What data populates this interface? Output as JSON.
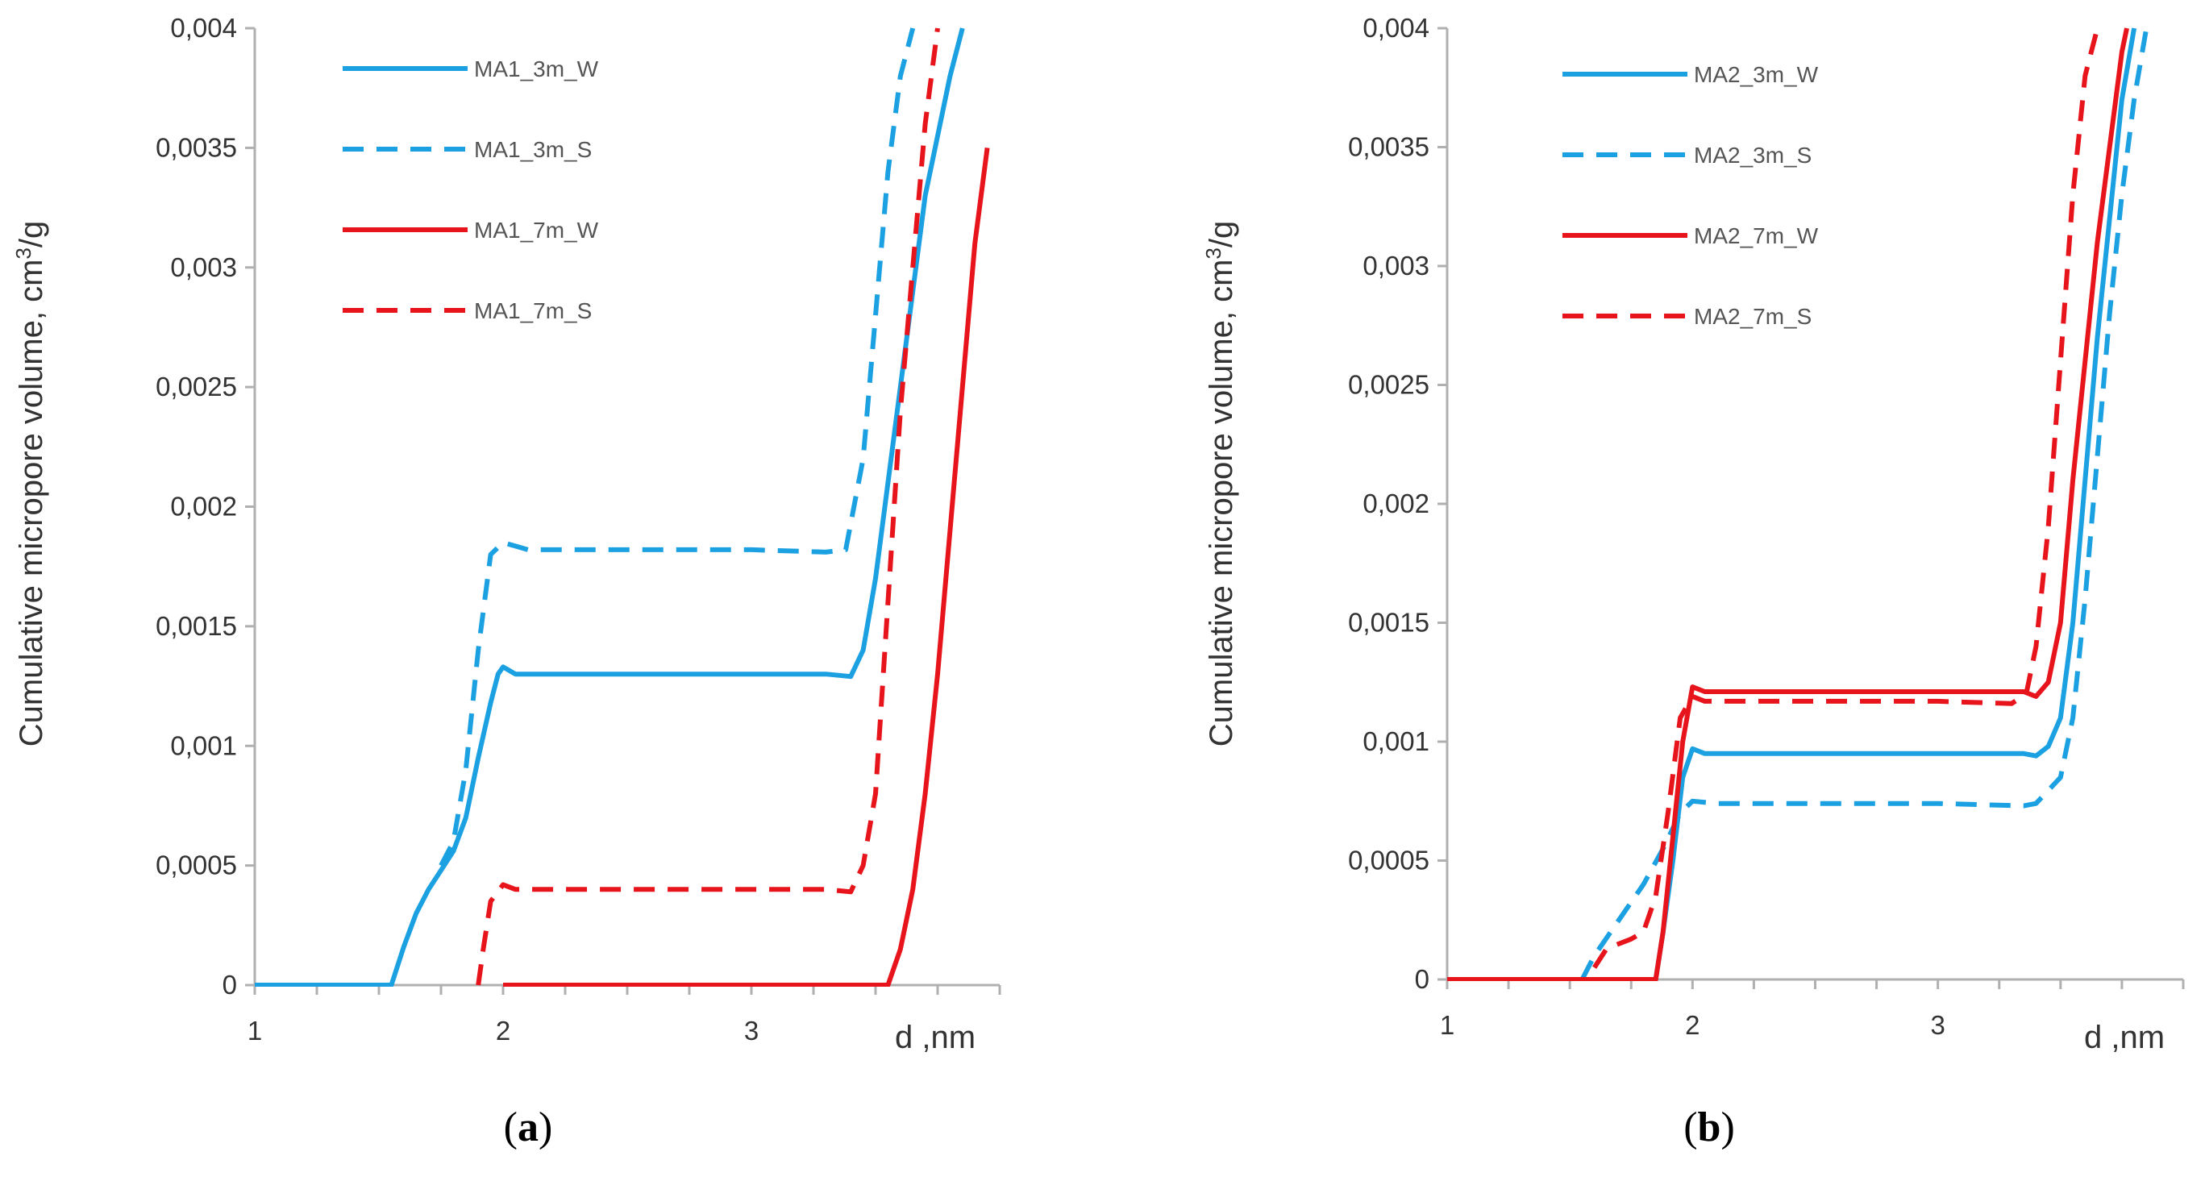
{
  "chart_data": [
    {
      "type": "line",
      "panel_label_open": "(",
      "panel_letter": "a",
      "panel_label_close": ")",
      "xlabel": "d ,nm",
      "ylabel_main": "Cumulative micropore volume, cm",
      "ylabel_sup": "3",
      "ylabel_tail": "/g",
      "xlim": [
        1,
        4
      ],
      "ylim": [
        0,
        0.004
      ],
      "x_ticks": [
        "1",
        "2",
        "3"
      ],
      "y_ticks": [
        "0",
        "0,0005",
        "0,001",
        "0,0015",
        "0,002",
        "0,0025",
        "0,003",
        "0,0035",
        "0,004"
      ],
      "grid": false,
      "legend_position": "top-left",
      "series": [
        {
          "name": "MA1_3m_W",
          "color": "#1ba1e2",
          "dash": "solid",
          "points": [
            [
              1.0,
              0
            ],
            [
              1.1,
              0
            ],
            [
              1.5,
              0
            ],
            [
              1.55,
              0
            ],
            [
              1.6,
              0.00016
            ],
            [
              1.65,
              0.0003
            ],
            [
              1.7,
              0.0004
            ],
            [
              1.75,
              0.00048
            ],
            [
              1.8,
              0.00056
            ],
            [
              1.85,
              0.0007
            ],
            [
              1.9,
              0.00095
            ],
            [
              1.95,
              0.00118
            ],
            [
              1.98,
              0.0013
            ],
            [
              2.0,
              0.00133
            ],
            [
              2.05,
              0.0013
            ],
            [
              2.5,
              0.0013
            ],
            [
              3.0,
              0.0013
            ],
            [
              3.3,
              0.0013
            ],
            [
              3.4,
              0.00129
            ],
            [
              3.45,
              0.0014
            ],
            [
              3.5,
              0.0017
            ],
            [
              3.6,
              0.0025
            ],
            [
              3.7,
              0.0033
            ],
            [
              3.8,
              0.0038
            ],
            [
              3.85,
              0.004
            ]
          ]
        },
        {
          "name": "MA1_3m_S",
          "color": "#1ba1e2",
          "dash": "dashed",
          "points": [
            [
              1.75,
              0.0005
            ],
            [
              1.8,
              0.0006
            ],
            [
              1.85,
              0.0009
            ],
            [
              1.9,
              0.0014
            ],
            [
              1.95,
              0.0018
            ],
            [
              2.0,
              0.00185
            ],
            [
              2.1,
              0.00182
            ],
            [
              2.5,
              0.00182
            ],
            [
              3.0,
              0.00182
            ],
            [
              3.3,
              0.00181
            ],
            [
              3.38,
              0.00182
            ],
            [
              3.45,
              0.0022
            ],
            [
              3.5,
              0.0028
            ],
            [
              3.55,
              0.0034
            ],
            [
              3.6,
              0.0038
            ],
            [
              3.65,
              0.004
            ]
          ]
        },
        {
          "name": "MA1_7m_W",
          "color": "#e8141c",
          "dash": "solid",
          "points": [
            [
              2.0,
              0
            ],
            [
              2.5,
              0
            ],
            [
              3.0,
              0
            ],
            [
              3.5,
              0
            ],
            [
              3.55,
              0
            ],
            [
              3.6,
              0.00015
            ],
            [
              3.65,
              0.0004
            ],
            [
              3.7,
              0.0008
            ],
            [
              3.75,
              0.0013
            ],
            [
              3.8,
              0.0019
            ],
            [
              3.85,
              0.0025
            ],
            [
              3.9,
              0.0031
            ],
            [
              3.95,
              0.0035
            ]
          ]
        },
        {
          "name": "MA1_7m_S",
          "color": "#e8141c",
          "dash": "dashed",
          "points": [
            [
              1.9,
              0
            ],
            [
              1.92,
              0.00015
            ],
            [
              1.95,
              0.00035
            ],
            [
              2.0,
              0.00042
            ],
            [
              2.05,
              0.0004
            ],
            [
              2.5,
              0.0004
            ],
            [
              3.0,
              0.0004
            ],
            [
              3.3,
              0.0004
            ],
            [
              3.4,
              0.00039
            ],
            [
              3.45,
              0.0005
            ],
            [
              3.5,
              0.0008
            ],
            [
              3.55,
              0.0016
            ],
            [
              3.6,
              0.0024
            ],
            [
              3.65,
              0.003
            ],
            [
              3.7,
              0.0036
            ],
            [
              3.75,
              0.004
            ]
          ]
        }
      ]
    },
    {
      "type": "line",
      "panel_label_open": "(",
      "panel_letter": "b",
      "panel_label_close": ")",
      "xlabel": "d ,nm",
      "ylabel_main": "Cumulative micropore volume, cm",
      "ylabel_sup": "3",
      "ylabel_tail": "/g",
      "xlim": [
        1,
        4
      ],
      "ylim": [
        0,
        0.004
      ],
      "x_ticks": [
        "1",
        "2",
        "3"
      ],
      "y_ticks": [
        "0",
        "0,0005",
        "0,001",
        "0,0015",
        "0,002",
        "0,0025",
        "0,003",
        "0,0035",
        "0,004"
      ],
      "grid": false,
      "legend_position": "top-left",
      "series": [
        {
          "name": "MA2_3m_W",
          "color": "#1ba1e2",
          "dash": "solid",
          "points": [
            [
              1.0,
              0
            ],
            [
              1.85,
              0
            ],
            [
              1.88,
              0.0002
            ],
            [
              1.92,
              0.0005
            ],
            [
              1.96,
              0.00085
            ],
            [
              2.0,
              0.00097
            ],
            [
              2.05,
              0.00095
            ],
            [
              2.5,
              0.00095
            ],
            [
              3.0,
              0.00095
            ],
            [
              3.35,
              0.00095
            ],
            [
              3.4,
              0.00094
            ],
            [
              3.45,
              0.00098
            ],
            [
              3.5,
              0.0011
            ],
            [
              3.55,
              0.0015
            ],
            [
              3.6,
              0.0021
            ],
            [
              3.65,
              0.0027
            ],
            [
              3.7,
              0.0032
            ],
            [
              3.75,
              0.0037
            ],
            [
              3.8,
              0.004
            ]
          ]
        },
        {
          "name": "MA2_3m_S",
          "color": "#1ba1e2",
          "dash": "dashed",
          "points": [
            [
              1.55,
              0
            ],
            [
              1.6,
              0.0001
            ],
            [
              1.7,
              0.00025
            ],
            [
              1.8,
              0.0004
            ],
            [
              1.88,
              0.00055
            ],
            [
              1.95,
              0.0007
            ],
            [
              2.0,
              0.00075
            ],
            [
              2.1,
              0.00074
            ],
            [
              2.5,
              0.00074
            ],
            [
              3.0,
              0.00074
            ],
            [
              3.35,
              0.00073
            ],
            [
              3.4,
              0.00074
            ],
            [
              3.5,
              0.00085
            ],
            [
              3.55,
              0.0011
            ],
            [
              3.6,
              0.0016
            ],
            [
              3.65,
              0.0022
            ],
            [
              3.7,
              0.0028
            ],
            [
              3.75,
              0.0033
            ],
            [
              3.8,
              0.0037
            ],
            [
              3.85,
              0.004
            ]
          ]
        },
        {
          "name": "MA2_7m_W",
          "color": "#e8141c",
          "dash": "solid",
          "points": [
            [
              1.0,
              0
            ],
            [
              1.5,
              0
            ],
            [
              1.8,
              0
            ],
            [
              1.85,
              0
            ],
            [
              1.88,
              0.0002
            ],
            [
              1.92,
              0.0006
            ],
            [
              1.96,
              0.001
            ],
            [
              2.0,
              0.00123
            ],
            [
              2.05,
              0.00121
            ],
            [
              2.5,
              0.00121
            ],
            [
              3.0,
              0.00121
            ],
            [
              3.35,
              0.00121
            ],
            [
              3.4,
              0.00119
            ],
            [
              3.45,
              0.00125
            ],
            [
              3.5,
              0.0015
            ],
            [
              3.55,
              0.0021
            ],
            [
              3.6,
              0.0026
            ],
            [
              3.65,
              0.0031
            ],
            [
              3.7,
              0.0035
            ],
            [
              3.75,
              0.0039
            ],
            [
              3.77,
              0.004
            ]
          ]
        },
        {
          "name": "MA2_7m_S",
          "color": "#e8141c",
          "dash": "dashed",
          "points": [
            [
              1.6,
              5e-05
            ],
            [
              1.65,
              0.00013
            ],
            [
              1.75,
              0.00017
            ],
            [
              1.8,
              0.0002
            ],
            [
              1.85,
              0.00035
            ],
            [
              1.9,
              0.0007
            ],
            [
              1.95,
              0.0011
            ],
            [
              2.0,
              0.00119
            ],
            [
              2.05,
              0.00117
            ],
            [
              2.5,
              0.00117
            ],
            [
              3.0,
              0.00117
            ],
            [
              3.3,
              0.00116
            ],
            [
              3.36,
              0.0012
            ],
            [
              3.4,
              0.0014
            ],
            [
              3.45,
              0.0019
            ],
            [
              3.5,
              0.0026
            ],
            [
              3.55,
              0.0033
            ],
            [
              3.6,
              0.0038
            ],
            [
              3.65,
              0.004
            ]
          ]
        }
      ]
    }
  ]
}
